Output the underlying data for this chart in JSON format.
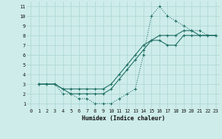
{
  "xlabel": "Humidex (Indice chaleur)",
  "background_color": "#cdecea",
  "grid_color": "#aad4d0",
  "line_color": "#1a6b60",
  "xlim": [
    -0.5,
    23.5
  ],
  "ylim": [
    0.5,
    11.5
  ],
  "xticks": [
    0,
    1,
    2,
    3,
    4,
    5,
    6,
    7,
    8,
    9,
    10,
    11,
    12,
    13,
    14,
    15,
    16,
    17,
    18,
    19,
    20,
    21,
    22,
    23
  ],
  "yticks": [
    1,
    2,
    3,
    4,
    5,
    6,
    7,
    8,
    9,
    10,
    11
  ],
  "line1_x": [
    1,
    2,
    3,
    4,
    5,
    6,
    7,
    8,
    9,
    10,
    11,
    12,
    13,
    14,
    15,
    16,
    17,
    18,
    19,
    20,
    21,
    22,
    23
  ],
  "line1_y": [
    3,
    3,
    3,
    2.5,
    2.5,
    2.5,
    2.5,
    2.5,
    2.5,
    3,
    4,
    5,
    6,
    7,
    7.5,
    8,
    8,
    8,
    8.5,
    8.5,
    8,
    8,
    8
  ],
  "line2_x": [
    1,
    2,
    3,
    4,
    5,
    6,
    7,
    8,
    9,
    10,
    11,
    12,
    13,
    14,
    15,
    16,
    17,
    18,
    19,
    20,
    21,
    22,
    23
  ],
  "line2_y": [
    3,
    3,
    3,
    2.5,
    2,
    2,
    2,
    2,
    2,
    2.5,
    3.5,
    4.5,
    5.5,
    6.5,
    7.5,
    7.5,
    7,
    7,
    8,
    8,
    8,
    8,
    8
  ],
  "line3_x": [
    1,
    2,
    3,
    4,
    5,
    6,
    7,
    8,
    9,
    10,
    11,
    12,
    13,
    14,
    15,
    16,
    17,
    18,
    19,
    20,
    21,
    22,
    23
  ],
  "line3_y": [
    3,
    3,
    3,
    2,
    2,
    1.5,
    1.5,
    1,
    1,
    1,
    1.5,
    2,
    2.5,
    6,
    10,
    11,
    10,
    9.5,
    9,
    8.5,
    8.5,
    8,
    8
  ]
}
